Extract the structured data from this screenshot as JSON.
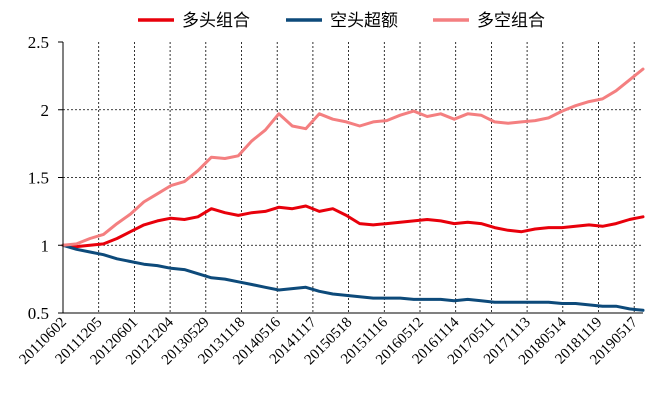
{
  "chart_data": {
    "type": "line",
    "title": "",
    "xlabel": "",
    "ylabel": "",
    "ylim": [
      0.5,
      2.5
    ],
    "yticks": [
      "0.5",
      "1",
      "1.5",
      "2",
      "2.5"
    ],
    "xticks": [
      "20110602",
      "20111205",
      "20120601",
      "20121204",
      "20130529",
      "20131118",
      "20140516",
      "20141117",
      "20150518",
      "20151116",
      "20160512",
      "20161114",
      "20170511",
      "20171113",
      "20180514",
      "20181119",
      "20190517"
    ],
    "grid": "dashed vertical and horizontal lines at major ticks",
    "legend_position": "top",
    "series": [
      {
        "name": "多头组合",
        "color": "#e8000b",
        "values": [
          1.0,
          0.99,
          1.0,
          1.01,
          1.05,
          1.1,
          1.15,
          1.18,
          1.2,
          1.19,
          1.21,
          1.27,
          1.24,
          1.22,
          1.24,
          1.25,
          1.28,
          1.27,
          1.29,
          1.25,
          1.27,
          1.22,
          1.16,
          1.15,
          1.16,
          1.17,
          1.18,
          1.19,
          1.18,
          1.16,
          1.17,
          1.16,
          1.13,
          1.11,
          1.1,
          1.12,
          1.13,
          1.13,
          1.14,
          1.15,
          1.14,
          1.16,
          1.19,
          1.21
        ]
      },
      {
        "name": "空头超额",
        "color": "#0d4a7a",
        "values": [
          1.0,
          0.97,
          0.95,
          0.93,
          0.9,
          0.88,
          0.86,
          0.85,
          0.83,
          0.82,
          0.79,
          0.76,
          0.75,
          0.73,
          0.71,
          0.69,
          0.67,
          0.68,
          0.69,
          0.66,
          0.64,
          0.63,
          0.62,
          0.61,
          0.61,
          0.61,
          0.6,
          0.6,
          0.6,
          0.59,
          0.6,
          0.59,
          0.58,
          0.58,
          0.58,
          0.58,
          0.58,
          0.57,
          0.57,
          0.56,
          0.55,
          0.55,
          0.53,
          0.52
        ]
      },
      {
        "name": "多空组合",
        "color": "#f47f80",
        "values": [
          1.0,
          1.01,
          1.05,
          1.08,
          1.16,
          1.23,
          1.32,
          1.38,
          1.44,
          1.47,
          1.55,
          1.65,
          1.64,
          1.66,
          1.77,
          1.85,
          1.97,
          1.88,
          1.86,
          1.97,
          1.93,
          1.91,
          1.88,
          1.91,
          1.92,
          1.96,
          1.99,
          1.95,
          1.97,
          1.93,
          1.97,
          1.96,
          1.91,
          1.9,
          1.91,
          1.92,
          1.94,
          1.99,
          2.03,
          2.06,
          2.08,
          2.14,
          2.22,
          2.3
        ]
      }
    ]
  }
}
